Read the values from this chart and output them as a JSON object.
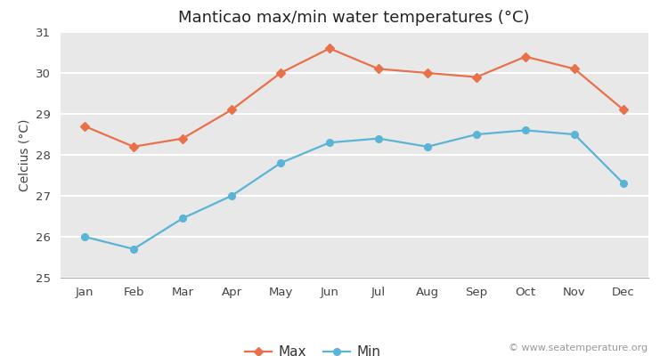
{
  "title": "Manticao max/min water temperatures (°C)",
  "ylabel": "Celcius (°C)",
  "months": [
    "Jan",
    "Feb",
    "Mar",
    "Apr",
    "May",
    "Jun",
    "Jul",
    "Aug",
    "Sep",
    "Oct",
    "Nov",
    "Dec"
  ],
  "max_values": [
    28.7,
    28.2,
    28.4,
    29.1,
    30.0,
    30.6,
    30.1,
    30.0,
    29.9,
    30.4,
    30.1,
    29.1
  ],
  "min_values": [
    26.0,
    25.7,
    26.45,
    27.0,
    27.8,
    28.3,
    28.4,
    28.2,
    28.5,
    28.6,
    28.5,
    27.3
  ],
  "max_color": "#e8714a",
  "min_color": "#5ab4d6",
  "fig_bg_color": "#ffffff",
  "plot_bg_color": "#e8e8e8",
  "ylim": [
    25,
    31
  ],
  "yticks": [
    25,
    26,
    27,
    28,
    29,
    30,
    31
  ],
  "legend_labels": [
    "Max",
    "Min"
  ],
  "watermark": "© www.seatemperature.org",
  "title_fontsize": 13,
  "label_fontsize": 10,
  "tick_fontsize": 9.5,
  "watermark_fontsize": 8,
  "legend_fontsize": 11
}
